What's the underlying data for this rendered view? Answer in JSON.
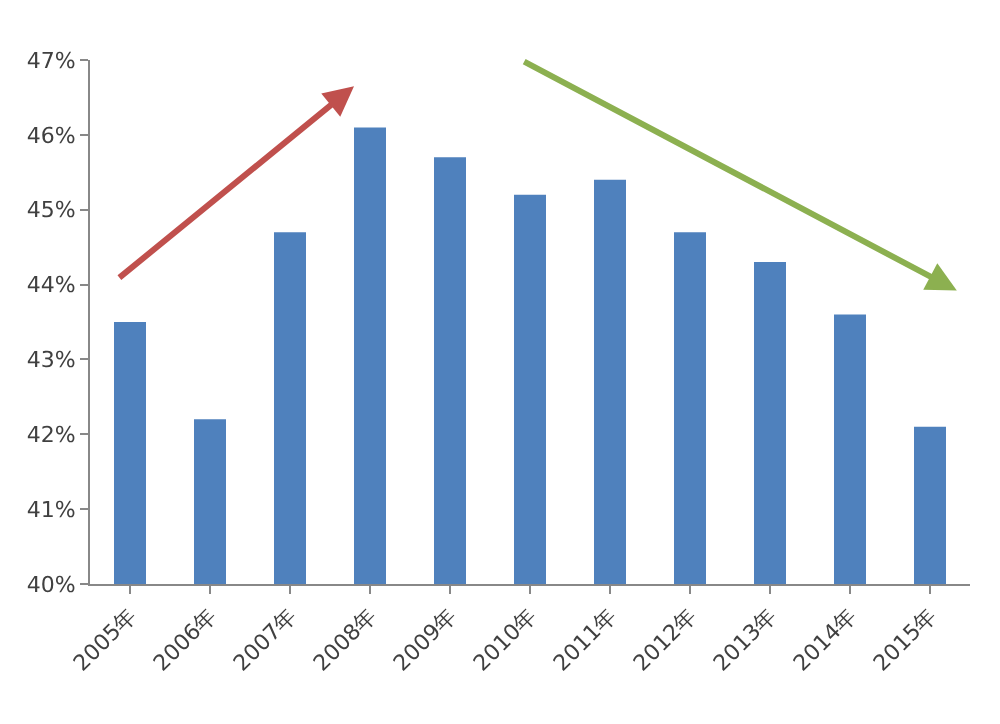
{
  "chart_data": {
    "type": "bar",
    "categories": [
      "2005年",
      "2006年",
      "2007年",
      "2008年",
      "2009年",
      "2010年",
      "2011年",
      "2012年",
      "2013年",
      "2014年",
      "2015年"
    ],
    "values": [
      43.5,
      42.2,
      44.7,
      46.1,
      45.7,
      45.2,
      45.4,
      44.7,
      44.3,
      43.6,
      42.1
    ],
    "color": "#4f81bd",
    "ylim": [
      40,
      47
    ],
    "yticks": [
      {
        "value": 40,
        "label": "40%"
      },
      {
        "value": 41,
        "label": "41%"
      },
      {
        "value": 42,
        "label": "42%"
      },
      {
        "value": 43,
        "label": "43%"
      },
      {
        "value": 44,
        "label": "44%"
      },
      {
        "value": 45,
        "label": "45%"
      },
      {
        "value": 46,
        "label": "46%"
      },
      {
        "value": 47,
        "label": "47%"
      }
    ]
  }
}
